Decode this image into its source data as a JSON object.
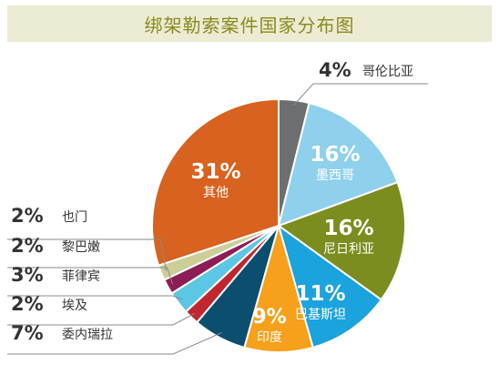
{
  "chart_data": {
    "type": "pie",
    "title": "绑架勒索案件国家分布图",
    "unit": "%",
    "slices": [
      {
        "label": "哥伦比亚",
        "value": 4,
        "color": "#6d6e70"
      },
      {
        "label": "墨西哥",
        "value": 16,
        "color": "#8fd0ec"
      },
      {
        "label": "尼日利亚",
        "value": 16,
        "color": "#7c8d1f"
      },
      {
        "label": "巴基斯坦",
        "value": 11,
        "color": "#1ba3dd"
      },
      {
        "label": "印度",
        "value": 9,
        "color": "#f6a01b"
      },
      {
        "label": "委内瑞拉",
        "value": 7,
        "color": "#0b4e6d"
      },
      {
        "label": "埃及",
        "value": 2,
        "color": "#c1262e"
      },
      {
        "label": "菲律宾",
        "value": 3,
        "color": "#5cc7e5"
      },
      {
        "label": "黎巴嫩",
        "value": 2,
        "color": "#8e1c55"
      },
      {
        "label": "也门",
        "value": 2,
        "color": "#cdcd98"
      },
      {
        "label": "其他",
        "value": 31,
        "color": "#d8621f"
      }
    ]
  }
}
